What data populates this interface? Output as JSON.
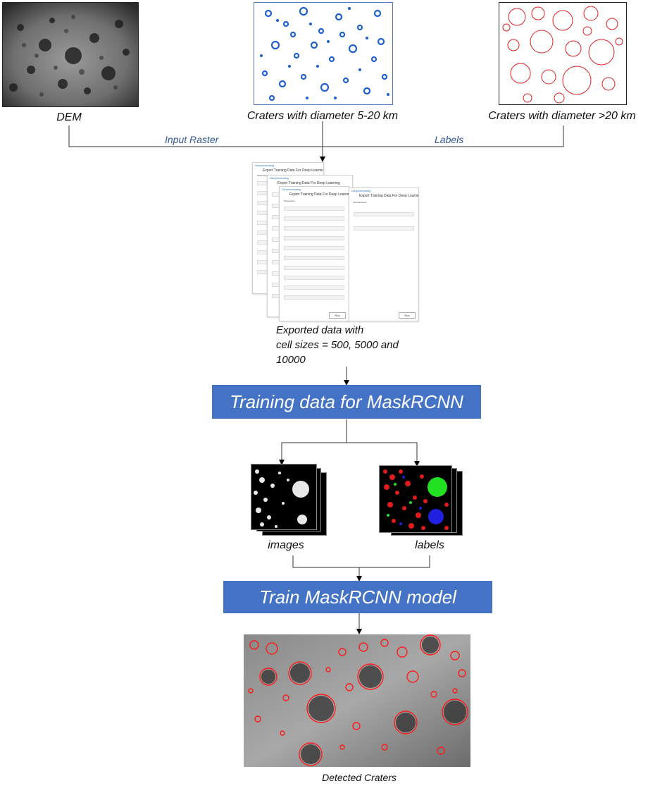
{
  "inputs": {
    "dem_caption": "DEM",
    "small_craters_caption": "Craters with diameter 5-20 km",
    "large_craters_caption": "Craters with diameter >20 km"
  },
  "edges": {
    "input_raster": "Input Raster",
    "labels": "Labels"
  },
  "export_tool": {
    "window_group": "Geoprocessing",
    "window_title": "Export Training Data For Deep Learning",
    "tab_parameters": "Parameters",
    "tab_environments": "Environments",
    "run_label": "Run",
    "caption_line1": "Exported data with",
    "caption_line2": "cell sizes = 500, 5000 and",
    "caption_line3": "10000"
  },
  "steps": {
    "training_data": "Training data for MaskRCNN",
    "images_caption": "images",
    "labels_caption": "labels",
    "train_model": "Train MaskRCNN model",
    "detected_caption": "Detected Craters"
  },
  "colors": {
    "box_fill": "#4472c4",
    "edge_label": "#2f5597",
    "small_craters": "#1f5fd0",
    "large_craters": "#e02020",
    "detections": "#ff1a1a"
  }
}
